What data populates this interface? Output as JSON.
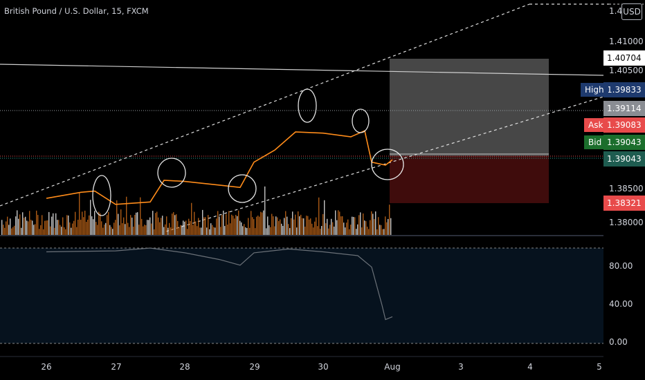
{
  "title": "British Pound / U.S. Dollar, 15, FXCM",
  "currency": "USD",
  "colors": {
    "background": "#000000",
    "candle": "#ff8c1a",
    "volume": "#c96a1a",
    "high_badge": "#1e3a6e",
    "ask_badge": "#e84b4b",
    "bid_badge": "#1b6e2c",
    "price_badge": "#1e5c50",
    "long_profit": "#ffffff",
    "long_loss": "#8b1a1a"
  },
  "axis": {
    "price_ticks": [
      "1.41000",
      "1.40500",
      "1.38500",
      "1.38000"
    ],
    "top_tick": "1.4",
    "time_ticks": [
      "26",
      "27",
      "28",
      "29",
      "30",
      "Aug",
      "3",
      "4",
      "5"
    ],
    "oscillator_ticks": [
      "80.00",
      "40.00",
      "0.00"
    ]
  },
  "price_labels": {
    "target": "1.40704",
    "high_name": "High",
    "high": "1.39833",
    "entry": "1.39114",
    "ask_name": "Ask",
    "ask": "1.39083",
    "bid_name": "Bid",
    "bid": "1.39043",
    "last": "1.39043",
    "stop": "1.38321"
  },
  "chart_data": {
    "type": "line",
    "symbol": "GBP/USD",
    "interval": "15",
    "x_categories": [
      "26",
      "27",
      "28",
      "29",
      "30",
      "Aug",
      "3",
      "4",
      "5"
    ],
    "price_path": [
      {
        "x": "26.0",
        "y": 1.384
      },
      {
        "x": "26.5",
        "y": 1.385
      },
      {
        "x": "26.7",
        "y": 1.3852
      },
      {
        "x": "27.0",
        "y": 1.383
      },
      {
        "x": "27.5",
        "y": 1.3834
      },
      {
        "x": "27.7",
        "y": 1.387
      },
      {
        "x": "28.0",
        "y": 1.3868
      },
      {
        "x": "28.5",
        "y": 1.3862
      },
      {
        "x": "28.8",
        "y": 1.3858
      },
      {
        "x": "29.0",
        "y": 1.39
      },
      {
        "x": "29.3",
        "y": 1.392
      },
      {
        "x": "29.6",
        "y": 1.395
      },
      {
        "x": "30.0",
        "y": 1.3948
      },
      {
        "x": "30.4",
        "y": 1.3942
      },
      {
        "x": "30.6",
        "y": 1.3952
      },
      {
        "x": "30.7",
        "y": 1.39
      },
      {
        "x": "30.9",
        "y": 1.3895
      },
      {
        "x": "31.0",
        "y": 1.3904
      }
    ],
    "oscillator": {
      "ticks": [
        80,
        40,
        0
      ],
      "path": [
        {
          "x": "26.0",
          "y": 96
        },
        {
          "x": "27.0",
          "y": 97
        },
        {
          "x": "27.5",
          "y": 100
        },
        {
          "x": "28.0",
          "y": 95
        },
        {
          "x": "28.5",
          "y": 88
        },
        {
          "x": "28.8",
          "y": 82
        },
        {
          "x": "29.0",
          "y": 95
        },
        {
          "x": "29.5",
          "y": 99
        },
        {
          "x": "30.0",
          "y": 96
        },
        {
          "x": "30.5",
          "y": 92
        },
        {
          "x": "30.7",
          "y": 80
        },
        {
          "x": "30.85",
          "y": 40
        },
        {
          "x": "30.9",
          "y": 25
        },
        {
          "x": "31.0",
          "y": 28
        }
      ]
    },
    "position": {
      "type": "long",
      "entry": 1.39114,
      "target": 1.40704,
      "stop": 1.38321
    },
    "levels": {
      "high": 1.39833,
      "ask": 1.39083,
      "bid": 1.39043
    }
  }
}
